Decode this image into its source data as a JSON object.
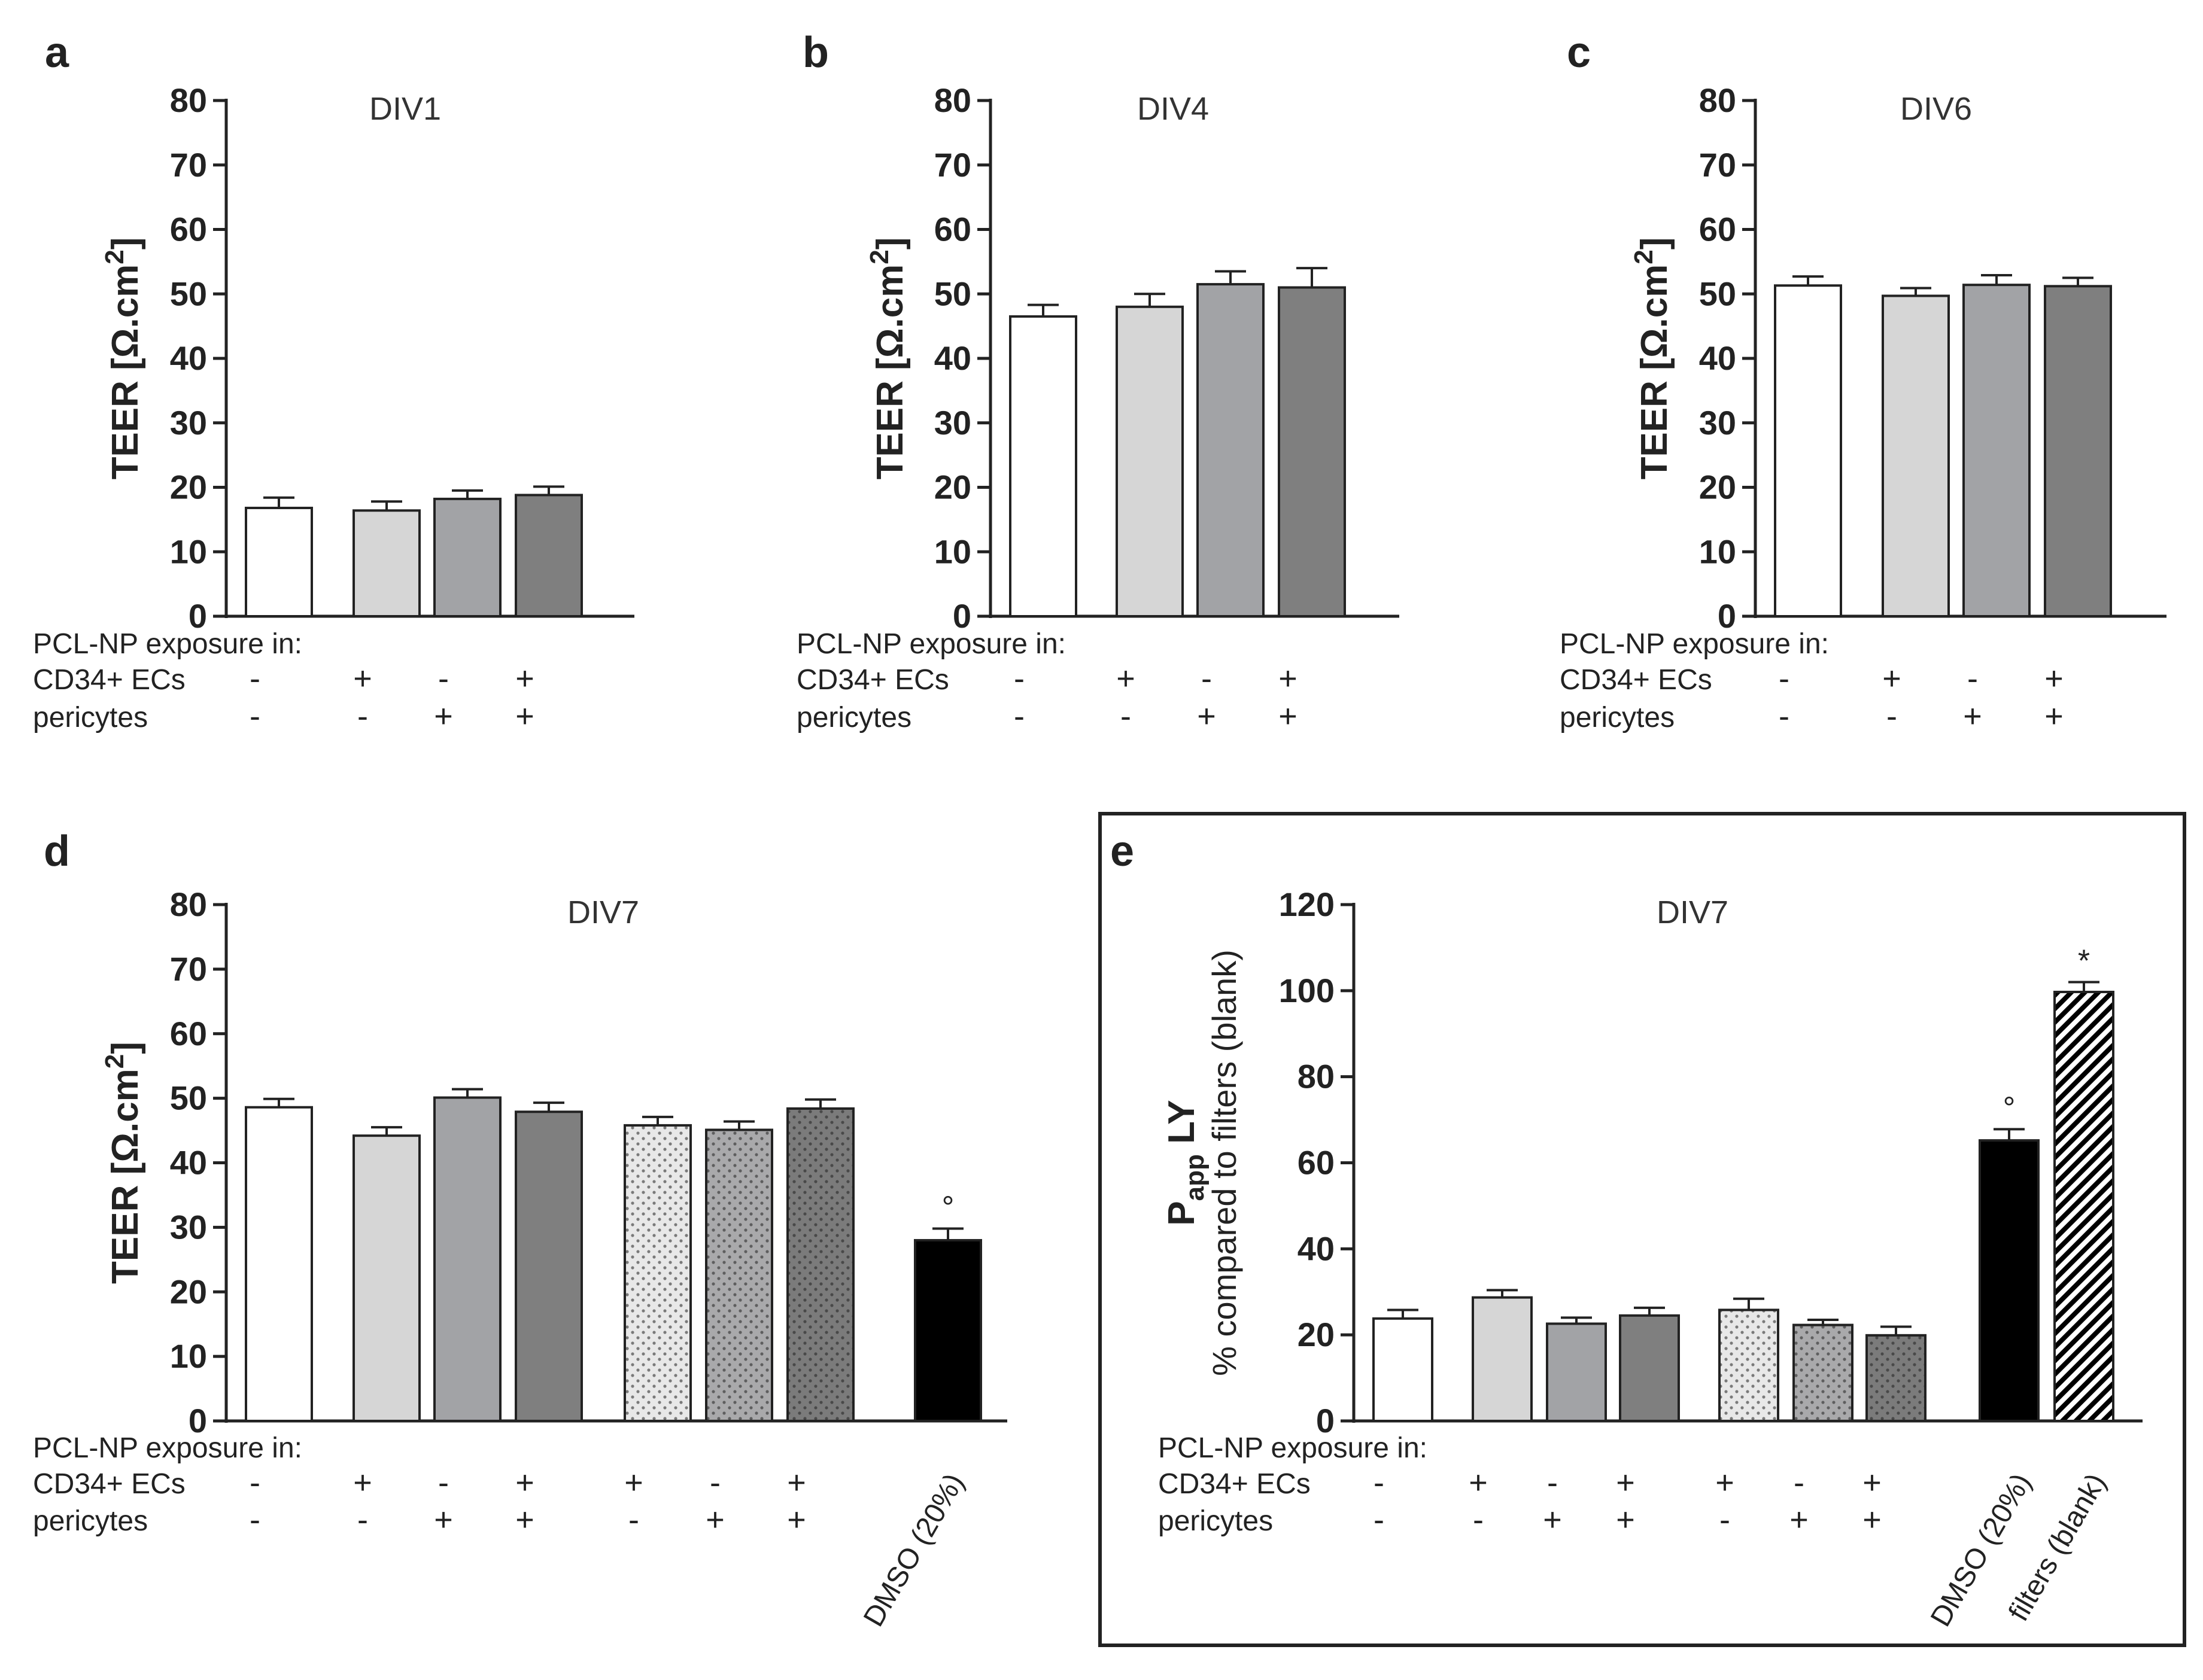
{
  "chart_data": [
    {
      "panel": "a",
      "type": "bar",
      "title": "DIV1",
      "ylabel": "TEER [Ω.cm",
      "ylabel_sup": "2",
      "ylabel_end": "]",
      "ylim": [
        0,
        80
      ],
      "yticks": [
        "0",
        "10",
        "20",
        "30",
        "40",
        "50",
        "60",
        "70",
        "80"
      ],
      "values": [
        16.8,
        16.4,
        18.2,
        18.8
      ],
      "errors": [
        1.6,
        1.4,
        1.3,
        1.3
      ],
      "fills": [
        "#ffffff",
        "#d6d6d6",
        "#a2a3a6",
        "#7f7f7f"
      ],
      "patterns": [
        "",
        "",
        "",
        ""
      ],
      "markers": [
        "",
        "",
        "",
        ""
      ],
      "rows": [
        {
          "label": "PCL-NP exposure in:",
          "signs": []
        },
        {
          "label": "CD34+ ECs",
          "signs": [
            "-",
            "+",
            "-",
            "+"
          ]
        },
        {
          "label": "pericytes",
          "signs": [
            "-",
            "-",
            "+",
            "+"
          ]
        }
      ],
      "rotated_labels": []
    },
    {
      "panel": "b",
      "type": "bar",
      "title": "DIV4",
      "ylabel": "TEER [Ω.cm",
      "ylabel_sup": "2",
      "ylabel_end": "]",
      "ylim": [
        0,
        80
      ],
      "yticks": [
        "0",
        "10",
        "20",
        "30",
        "40",
        "50",
        "60",
        "70",
        "80"
      ],
      "values": [
        46.5,
        48.0,
        51.5,
        51.0
      ],
      "errors": [
        1.8,
        2.0,
        2.0,
        3.0
      ],
      "fills": [
        "#ffffff",
        "#d6d6d6",
        "#a2a3a6",
        "#7f7f7f"
      ],
      "patterns": [
        "",
        "",
        "",
        ""
      ],
      "markers": [
        "",
        "",
        "",
        ""
      ],
      "rows": [
        {
          "label": "PCL-NP exposure in:",
          "signs": []
        },
        {
          "label": "CD34+ ECs",
          "signs": [
            "-",
            "+",
            "-",
            "+"
          ]
        },
        {
          "label": "pericytes",
          "signs": [
            "-",
            "-",
            "+",
            "+"
          ]
        }
      ],
      "rotated_labels": []
    },
    {
      "panel": "c",
      "type": "bar",
      "title": "DIV6",
      "ylabel": "TEER [Ω.cm",
      "ylabel_sup": "2",
      "ylabel_end": "]",
      "ylim": [
        0,
        80
      ],
      "yticks": [
        "0",
        "10",
        "20",
        "30",
        "40",
        "50",
        "60",
        "70",
        "80"
      ],
      "values": [
        51.3,
        49.7,
        51.4,
        51.2
      ],
      "errors": [
        1.4,
        1.2,
        1.5,
        1.3
      ],
      "fills": [
        "#ffffff",
        "#d6d6d6",
        "#a2a3a6",
        "#7f7f7f"
      ],
      "patterns": [
        "",
        "",
        "",
        ""
      ],
      "markers": [
        "",
        "",
        "",
        ""
      ],
      "rows": [
        {
          "label": "PCL-NP exposure in:",
          "signs": []
        },
        {
          "label": "CD34+ ECs",
          "signs": [
            "-",
            "+",
            "-",
            "+"
          ]
        },
        {
          "label": "pericytes",
          "signs": [
            "-",
            "-",
            "+",
            "+"
          ]
        }
      ],
      "rotated_labels": []
    },
    {
      "panel": "d",
      "type": "bar",
      "title": "DIV7",
      "ylabel": "TEER [Ω.cm",
      "ylabel_sup": "2",
      "ylabel_end": "]",
      "ylim": [
        0,
        80
      ],
      "yticks": [
        "0",
        "10",
        "20",
        "30",
        "40",
        "50",
        "60",
        "70",
        "80"
      ],
      "values": [
        48.6,
        44.2,
        50.1,
        47.9,
        45.8,
        45.1,
        48.4,
        28.0
      ],
      "errors": [
        1.3,
        1.3,
        1.3,
        1.4,
        1.3,
        1.3,
        1.4,
        1.8
      ],
      "fills": [
        "#ffffff",
        "#d6d6d6",
        "#a2a3a6",
        "#7f7f7f",
        "#e8e8e8",
        "#a9a9ab",
        "#7b7b7b",
        "#000000"
      ],
      "patterns": [
        "",
        "",
        "",
        "",
        "dots",
        "dots",
        "dots",
        ""
      ],
      "markers": [
        "",
        "",
        "",
        "",
        "",
        "",
        "",
        "°"
      ],
      "rows": [
        {
          "label": "PCL-NP exposure in:",
          "signs": []
        },
        {
          "label": "CD34+ ECs",
          "signs": [
            "-",
            "+",
            "-",
            "+",
            "+",
            "-",
            "+",
            ""
          ]
        },
        {
          "label": "pericytes",
          "signs": [
            "-",
            "-",
            "+",
            "+",
            "-",
            "+",
            "+",
            ""
          ]
        }
      ],
      "rotated_labels": [
        "",
        "",
        "",
        "",
        "",
        "",
        "",
        "DMSO (20%)"
      ]
    },
    {
      "panel": "e",
      "type": "bar",
      "title": "DIV7",
      "ylabel": "P",
      "ylabel_sub": "app",
      "ylabel_end": " LY",
      "ylabel2": "% compared to filters (blank)",
      "ylim": [
        0,
        120
      ],
      "yticks": [
        "0",
        "20",
        "40",
        "60",
        "80",
        "100",
        "120"
      ],
      "values": [
        23.8,
        28.7,
        22.6,
        24.5,
        25.8,
        22.3,
        19.9,
        65.2,
        99.7
      ],
      "errors": [
        2.0,
        1.7,
        1.4,
        1.8,
        2.6,
        1.2,
        2.0,
        2.6,
        2.3
      ],
      "fills": [
        "#ffffff",
        "#d6d6d6",
        "#a2a3a6",
        "#7f7f7f",
        "#e8e8e8",
        "#a9a9ab",
        "#7b7b7b",
        "#000000",
        "#ffffff"
      ],
      "patterns": [
        "",
        "",
        "",
        "",
        "dots",
        "dots",
        "dots",
        "",
        "hatch"
      ],
      "markers": [
        "",
        "",
        "",
        "",
        "",
        "",
        "",
        "°",
        "*"
      ],
      "rows": [
        {
          "label": "PCL-NP exposure in:",
          "signs": []
        },
        {
          "label": "CD34+ ECs",
          "signs": [
            "-",
            "+",
            "-",
            "+",
            "+",
            "-",
            "+",
            "",
            ""
          ]
        },
        {
          "label": "pericytes",
          "signs": [
            "-",
            "-",
            "+",
            "+",
            "-",
            "+",
            "+",
            "",
            ""
          ]
        }
      ],
      "rotated_labels": [
        "",
        "",
        "",
        "",
        "",
        "",
        "",
        "DMSO (20%)",
        "filters (blank)"
      ]
    }
  ]
}
